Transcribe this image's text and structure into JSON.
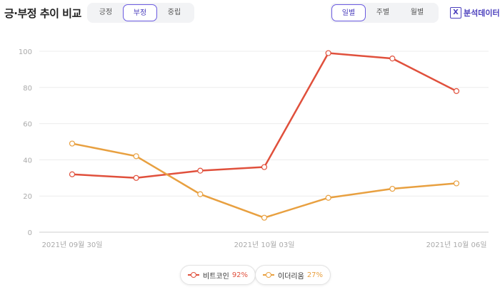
{
  "header": {
    "title": "긍·부정 추이 비교",
    "sentiment_tabs": [
      "긍정",
      "부정",
      "중립"
    ],
    "sentiment_selected": 1,
    "period_tabs": [
      "일별",
      "주별",
      "월별"
    ],
    "period_selected": 0,
    "analysis_label": "분석데이터"
  },
  "chart_data": {
    "type": "line",
    "x": [
      "2021-09-30",
      "2021-10-01",
      "2021-10-02",
      "2021-10-03",
      "2021-10-04",
      "2021-10-05",
      "2021-10-06"
    ],
    "x_tick_labels": [
      "2021년 09월 30일",
      "2021년 10월 03일",
      "2021년 10월 06일"
    ],
    "x_tick_indices": [
      0,
      3,
      6
    ],
    "ylim": [
      0,
      100
    ],
    "y_ticks": [
      0,
      20,
      40,
      60,
      80,
      100
    ],
    "grid": true,
    "series": [
      {
        "name": "비트코인",
        "pct": "92%",
        "color": "#e0503c",
        "values": [
          32,
          30,
          34,
          36,
          99,
          96,
          78
        ]
      },
      {
        "name": "이더리움",
        "pct": "27%",
        "color": "#e8a040",
        "values": [
          49,
          42,
          21,
          8,
          19,
          24,
          27
        ]
      }
    ],
    "legend_position": "bottom"
  }
}
